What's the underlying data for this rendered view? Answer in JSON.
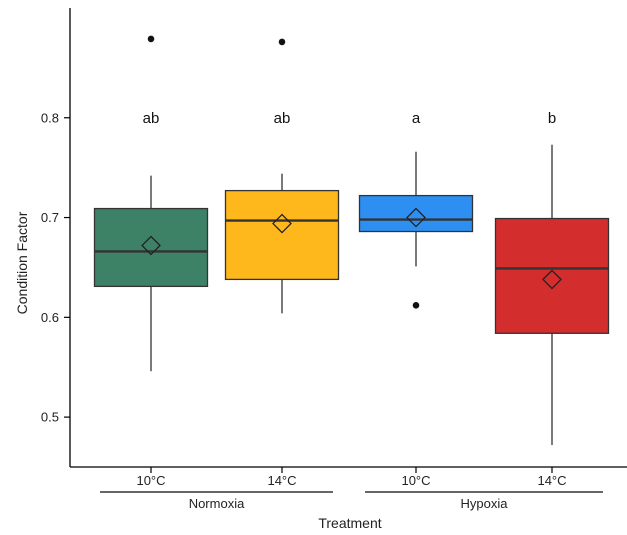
{
  "chart_data": {
    "type": "boxplot",
    "xlabel": "Treatment",
    "ylabel": "Condition Factor",
    "ylim": [
      0.45,
      0.91
    ],
    "yticks": [
      0.5,
      0.6,
      0.7,
      0.8
    ],
    "ytick_labels": [
      "0.5",
      "0.6",
      "0.7",
      "0.8"
    ],
    "groups": [
      {
        "label": "Normoxia",
        "categories": [
          0,
          1
        ]
      },
      {
        "label": "Hypoxia",
        "categories": [
          2,
          3
        ]
      }
    ],
    "boxes": [
      {
        "label": "10°C",
        "color": "#3d8266",
        "whisker_low": 0.546,
        "q1": 0.631,
        "median": 0.666,
        "q3": 0.709,
        "whisker_high": 0.742,
        "mean": 0.672,
        "outliers": [
          0.879
        ],
        "letter": "ab"
      },
      {
        "label": "14°C",
        "color": "#ffb81c",
        "whisker_low": 0.604,
        "q1": 0.638,
        "median": 0.697,
        "q3": 0.727,
        "whisker_high": 0.744,
        "mean": 0.694,
        "outliers": [
          0.876
        ],
        "letter": "ab"
      },
      {
        "label": "10°C",
        "color": "#2e8ff2",
        "whisker_low": 0.651,
        "q1": 0.686,
        "median": 0.698,
        "q3": 0.722,
        "whisker_high": 0.766,
        "mean": 0.7,
        "outliers": [
          0.612
        ],
        "letter": "a"
      },
      {
        "label": "14°C",
        "color": "#d42d2d",
        "whisker_low": 0.472,
        "q1": 0.584,
        "median": 0.649,
        "q3": 0.699,
        "whisker_high": 0.773,
        "mean": 0.638,
        "outliers": [],
        "letter": "b"
      }
    ],
    "letter_y": 0.8,
    "grid": false
  }
}
